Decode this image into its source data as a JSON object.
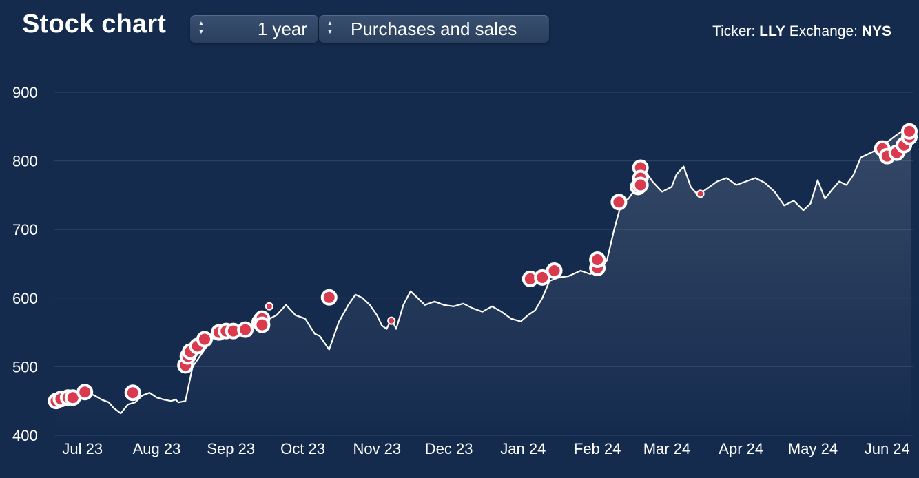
{
  "header": {
    "title": "Stock chart",
    "period_select": "1 year",
    "mode_select": "Purchases and sales",
    "ticker_label": "Ticker:",
    "ticker_value": "LLY",
    "exchange_label": "Exchange:",
    "exchange_value": "NYS"
  },
  "icons": {
    "select_arrows": "up-down-arrows-icon"
  },
  "colors": {
    "background": "#152b4e",
    "line": "#ffffff",
    "marker": "#d93a4e",
    "grid": "#2a4468"
  },
  "chart_data": {
    "type": "line",
    "ylim": [
      400,
      900
    ],
    "yticks": [
      400,
      500,
      600,
      700,
      800,
      900
    ],
    "xlim": [
      "2023-06-19",
      "2024-06-12"
    ],
    "xticks": [
      {
        "date": "2023-07-01",
        "label": "Jul 23"
      },
      {
        "date": "2023-08-01",
        "label": "Aug 23"
      },
      {
        "date": "2023-09-01",
        "label": "Sep 23"
      },
      {
        "date": "2023-10-01",
        "label": "Oct 23"
      },
      {
        "date": "2023-11-01",
        "label": "Nov 23"
      },
      {
        "date": "2023-12-01",
        "label": "Dec 23"
      },
      {
        "date": "2024-01-01",
        "label": "Jan 24"
      },
      {
        "date": "2024-02-01",
        "label": "Feb 24"
      },
      {
        "date": "2024-03-01",
        "label": "Mar 24"
      },
      {
        "date": "2024-04-01",
        "label": "Apr 24"
      },
      {
        "date": "2024-05-01",
        "label": "May 24"
      },
      {
        "date": "2024-06-01",
        "label": "Jun 24"
      }
    ],
    "grid": true,
    "area_fill": true,
    "price": {
      "x": [
        "2023-06-20",
        "2023-06-23",
        "2023-06-26",
        "2023-06-29",
        "2023-07-03",
        "2023-07-06",
        "2023-07-09",
        "2023-07-12",
        "2023-07-14",
        "2023-07-17",
        "2023-07-20",
        "2023-07-23",
        "2023-07-26",
        "2023-07-29",
        "2023-08-01",
        "2023-08-04",
        "2023-08-07",
        "2023-08-09",
        "2023-08-10",
        "2023-08-13",
        "2023-08-16",
        "2023-08-20",
        "2023-08-24",
        "2023-08-28",
        "2023-09-01",
        "2023-09-05",
        "2023-09-08",
        "2023-09-12",
        "2023-09-16",
        "2023-09-20",
        "2023-09-24",
        "2023-09-28",
        "2023-10-02",
        "2023-10-06",
        "2023-10-08",
        "2023-10-10",
        "2023-10-12",
        "2023-10-16",
        "2023-10-20",
        "2023-10-23",
        "2023-10-26",
        "2023-10-29",
        "2023-11-01",
        "2023-11-03",
        "2023-11-05",
        "2023-11-07",
        "2023-11-09",
        "2023-11-12",
        "2023-11-15",
        "2023-11-18",
        "2023-11-21",
        "2023-11-25",
        "2023-11-29",
        "2023-12-03",
        "2023-12-07",
        "2023-12-11",
        "2023-12-15",
        "2023-12-19",
        "2023-12-23",
        "2023-12-27",
        "2023-12-31",
        "2024-01-03",
        "2024-01-06",
        "2024-01-09",
        "2024-01-12",
        "2024-01-16",
        "2024-01-20",
        "2024-01-25",
        "2024-01-29",
        "2024-02-02",
        "2024-02-05",
        "2024-02-08",
        "2024-02-11",
        "2024-02-14",
        "2024-02-18",
        "2024-02-21",
        "2024-02-24",
        "2024-02-28",
        "2024-03-03",
        "2024-03-05",
        "2024-03-08",
        "2024-03-11",
        "2024-03-14",
        "2024-03-18",
        "2024-03-22",
        "2024-03-26",
        "2024-03-30",
        "2024-04-03",
        "2024-04-07",
        "2024-04-11",
        "2024-04-15",
        "2024-04-19",
        "2024-04-23",
        "2024-04-27",
        "2024-04-30",
        "2024-05-03",
        "2024-05-06",
        "2024-05-09",
        "2024-05-12",
        "2024-05-15",
        "2024-05-18",
        "2024-05-21",
        "2024-05-24",
        "2024-05-27",
        "2024-05-30",
        "2024-06-02",
        "2024-06-05",
        "2024-06-08",
        "2024-06-11"
      ],
      "y": [
        450,
        452,
        455,
        460,
        462,
        458,
        452,
        448,
        440,
        432,
        445,
        448,
        458,
        462,
        455,
        452,
        450,
        452,
        448,
        450,
        500,
        520,
        540,
        548,
        552,
        556,
        555,
        560,
        568,
        575,
        590,
        575,
        570,
        548,
        545,
        535,
        525,
        565,
        590,
        605,
        600,
        590,
        575,
        560,
        555,
        570,
        555,
        590,
        610,
        600,
        590,
        595,
        590,
        588,
        592,
        585,
        580,
        588,
        580,
        570,
        566,
        575,
        582,
        600,
        625,
        630,
        632,
        640,
        635,
        640,
        655,
        700,
        738,
        745,
        765,
        785,
        770,
        755,
        762,
        780,
        792,
        762,
        750,
        760,
        770,
        775,
        765,
        770,
        775,
        768,
        755,
        735,
        742,
        728,
        738,
        772,
        745,
        758,
        770,
        765,
        780,
        805,
        810,
        815,
        822,
        830,
        838,
        845,
        845
      ]
    },
    "trades": {
      "x": [
        "2023-06-20",
        "2023-06-22",
        "2023-06-25",
        "2023-06-27",
        "2023-07-02",
        "2023-07-22",
        "2023-08-13",
        "2023-08-14",
        "2023-08-15",
        "2023-08-18",
        "2023-08-21",
        "2023-08-27",
        "2023-08-30",
        "2023-09-02",
        "2023-09-07",
        "2023-09-13",
        "2023-09-14",
        "2023-09-14",
        "2023-09-17",
        "2023-10-12",
        "2023-11-07",
        "2024-01-04",
        "2024-01-09",
        "2024-01-14",
        "2024-02-01",
        "2024-02-01",
        "2024-02-10",
        "2024-02-18",
        "2024-02-19",
        "2024-02-19",
        "2024-02-19",
        "2024-03-15",
        "2024-05-30",
        "2024-06-01",
        "2024-06-05",
        "2024-06-08",
        "2024-06-11",
        "2024-06-12"
      ],
      "y": [
        450,
        453,
        455,
        455,
        463,
        462,
        502,
        515,
        522,
        530,
        540,
        550,
        552,
        552,
        554,
        565,
        570,
        561,
        588,
        601,
        567,
        628,
        630,
        640,
        644,
        656,
        740,
        762,
        790,
        775,
        765,
        752,
        818,
        807,
        812,
        823,
        835,
        843
      ],
      "size": [
        "l",
        "l",
        "l",
        "l",
        "l",
        "l",
        "l",
        "l",
        "l",
        "l",
        "l",
        "l",
        "l",
        "l",
        "l",
        "l",
        "l",
        "l",
        "s",
        "l",
        "s",
        "l",
        "l",
        "l",
        "l",
        "l",
        "l",
        "l",
        "l",
        "l",
        "l",
        "s",
        "l",
        "l",
        "l",
        "l",
        "l",
        "l"
      ]
    }
  }
}
